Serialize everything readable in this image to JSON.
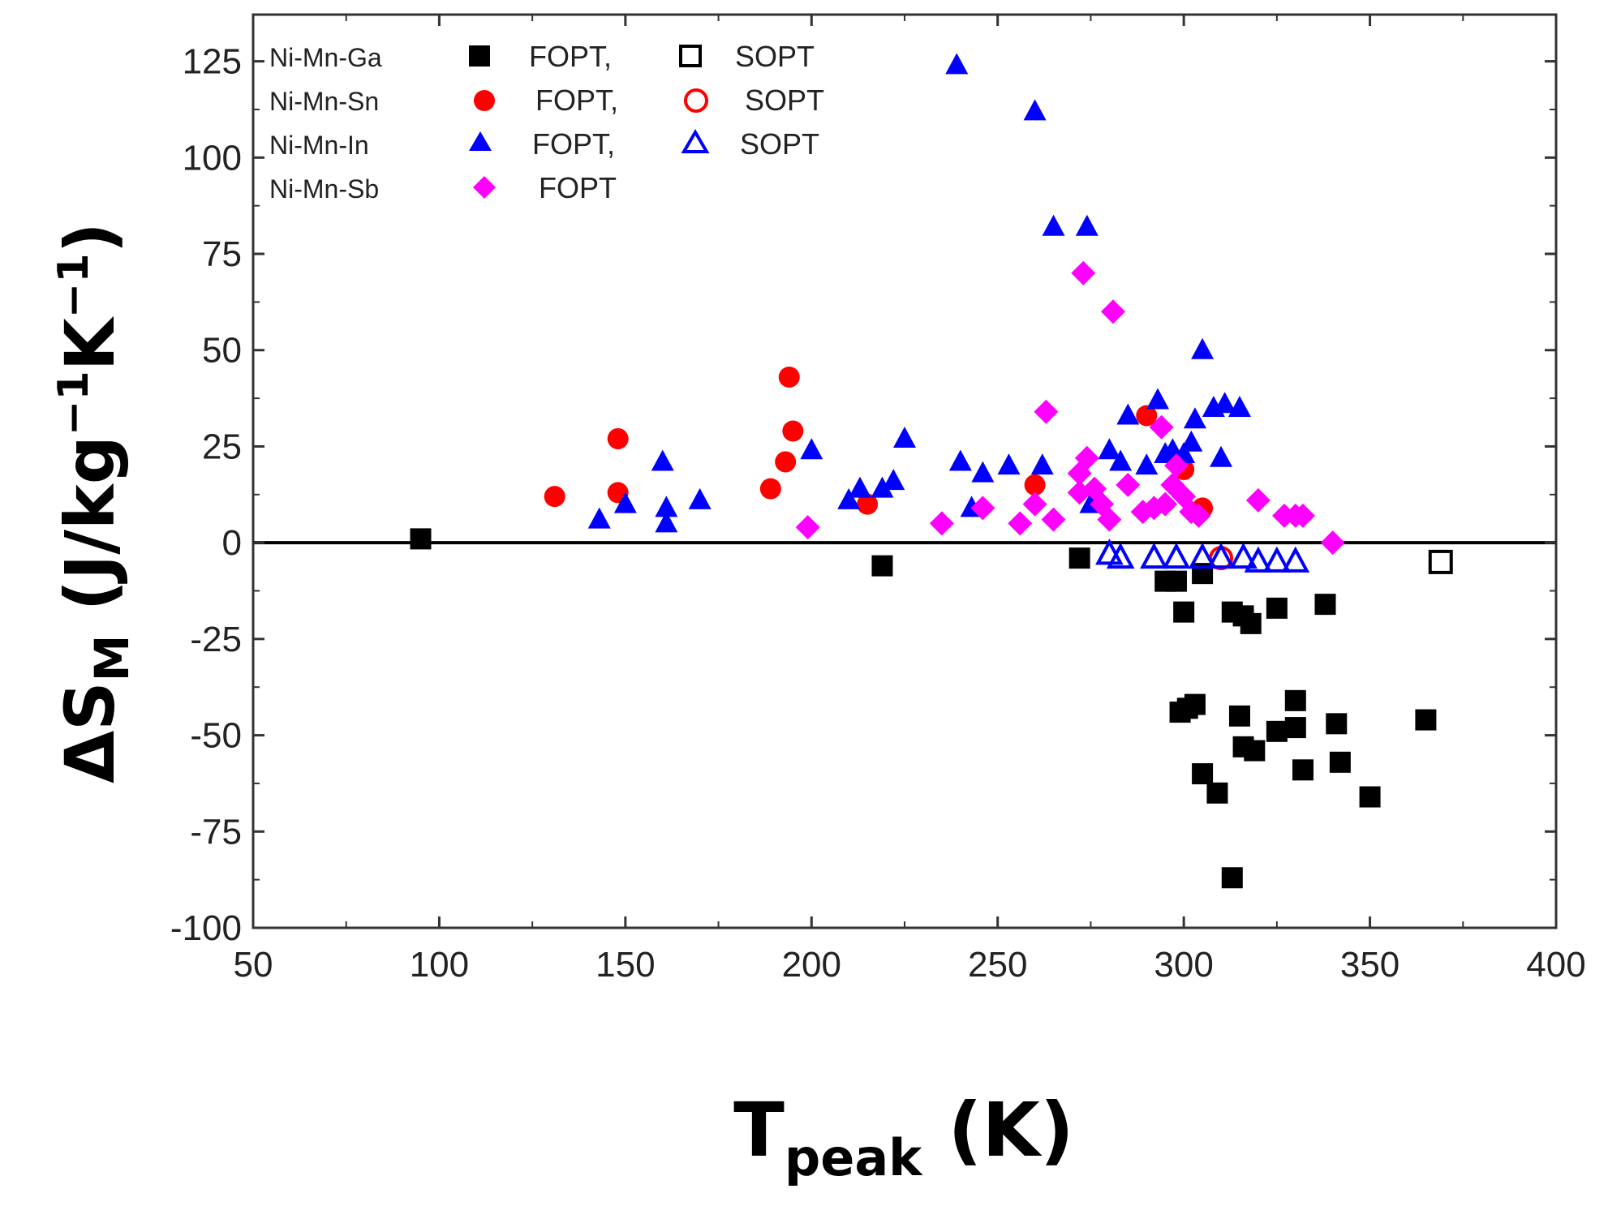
{
  "chart_data": {
    "type": "scatter",
    "title": "",
    "xlabel": {
      "main": "T",
      "subscript": "peak",
      "unit": "(K)"
    },
    "ylabel": {
      "main": "ΔS",
      "subscript": "M",
      "unit": "(J/kg",
      "exp1": "−1",
      "mid": "K",
      "exp2": "−1",
      "close": ")"
    },
    "xlim": [
      50,
      400
    ],
    "ylim": [
      -100,
      137
    ],
    "xticks": [
      50,
      100,
      150,
      200,
      250,
      300,
      350,
      400
    ],
    "yticks": [
      125,
      100,
      75,
      50,
      25,
      0,
      -25,
      -50,
      -75,
      -100
    ],
    "grid": false,
    "zero_line": true,
    "legend_position": "top-left",
    "legend": [
      {
        "alloy": "Ni-Mn-Ga",
        "fopt_label": "FOPT,",
        "sopt_label": "SOPT"
      },
      {
        "alloy": "Ni-Mn-Sn",
        "fopt_label": "FOPT,",
        "sopt_label": "SOPT"
      },
      {
        "alloy": "Ni-Mn-In",
        "fopt_label": "FOPT,",
        "sopt_label": "SOPT"
      },
      {
        "alloy": "Ni-Mn-Sb",
        "fopt_label": "FOPT",
        "sopt_label": ""
      }
    ],
    "series": [
      {
        "name": "Ni-Mn-Ga FOPT",
        "marker": "square",
        "filled": true,
        "color": "#000000",
        "points": [
          [
            95,
            1
          ],
          [
            219,
            -6
          ],
          [
            272,
            -4
          ],
          [
            295,
            -10
          ],
          [
            298,
            -10
          ],
          [
            300,
            -18
          ],
          [
            305,
            -8
          ],
          [
            313,
            -18
          ],
          [
            316,
            -19
          ],
          [
            318,
            -21
          ],
          [
            325,
            -17
          ],
          [
            338,
            -16
          ],
          [
            299,
            -44
          ],
          [
            301,
            -43
          ],
          [
            303,
            -42
          ],
          [
            305,
            -60
          ],
          [
            309,
            -65
          ],
          [
            315,
            -45
          ],
          [
            316,
            -53
          ],
          [
            319,
            -54
          ],
          [
            325,
            -49
          ],
          [
            330,
            -41
          ],
          [
            330,
            -48
          ],
          [
            332,
            -59
          ],
          [
            341,
            -47
          ],
          [
            342,
            -57
          ],
          [
            350,
            -66
          ],
          [
            365,
            -46
          ],
          [
            313,
            -87
          ]
        ]
      },
      {
        "name": "Ni-Mn-Ga SOPT",
        "marker": "square",
        "filled": false,
        "color": "#000000",
        "points": [
          [
            369,
            -5
          ]
        ]
      },
      {
        "name": "Ni-Mn-Sn FOPT",
        "marker": "circle",
        "filled": true,
        "color": "#ff0000",
        "points": [
          [
            131,
            12
          ],
          [
            148,
            27
          ],
          [
            148,
            13
          ],
          [
            189,
            14
          ],
          [
            193,
            21
          ],
          [
            194,
            43
          ],
          [
            195,
            29
          ],
          [
            215,
            10
          ],
          [
            260,
            15
          ],
          [
            290,
            33
          ],
          [
            305,
            9
          ],
          [
            300,
            19
          ]
        ]
      },
      {
        "name": "Ni-Mn-Sn SOPT",
        "marker": "circle",
        "filled": false,
        "color": "#ff0000",
        "points": [
          [
            310,
            -4
          ]
        ]
      },
      {
        "name": "Ni-Mn-In FOPT",
        "marker": "triangle",
        "filled": true,
        "color": "#0000ff",
        "points": [
          [
            143,
            6
          ],
          [
            150,
            10
          ],
          [
            160,
            21
          ],
          [
            161,
            9
          ],
          [
            161,
            5
          ],
          [
            170,
            11
          ],
          [
            200,
            24
          ],
          [
            210,
            11
          ],
          [
            213,
            14
          ],
          [
            219,
            14
          ],
          [
            222,
            16
          ],
          [
            225,
            27
          ],
          [
            239,
            124
          ],
          [
            240,
            21
          ],
          [
            243,
            9
          ],
          [
            246,
            18
          ],
          [
            253,
            20
          ],
          [
            260,
            112
          ],
          [
            262,
            20
          ],
          [
            265,
            82
          ],
          [
            274,
            82
          ],
          [
            275,
            10
          ],
          [
            280,
            24
          ],
          [
            283,
            21
          ],
          [
            285,
            33
          ],
          [
            290,
            20
          ],
          [
            293,
            37
          ],
          [
            295,
            23
          ],
          [
            297,
            24
          ],
          [
            300,
            23
          ],
          [
            302,
            26
          ],
          [
            303,
            32
          ],
          [
            305,
            50
          ],
          [
            308,
            35
          ],
          [
            310,
            22
          ],
          [
            311,
            36
          ],
          [
            315,
            35
          ]
        ]
      },
      {
        "name": "Ni-Mn-In SOPT",
        "marker": "triangle",
        "filled": false,
        "color": "#0000ff",
        "points": [
          [
            280,
            -3
          ],
          [
            283,
            -4
          ],
          [
            292,
            -4
          ],
          [
            298,
            -4
          ],
          [
            305,
            -4
          ],
          [
            310,
            -4
          ],
          [
            316,
            -4
          ],
          [
            320,
            -5
          ],
          [
            325,
            -5
          ],
          [
            330,
            -5
          ]
        ]
      },
      {
        "name": "Ni-Mn-Sb FOPT",
        "marker": "diamond",
        "filled": true,
        "color": "#ff00ff",
        "points": [
          [
            199,
            4
          ],
          [
            235,
            5
          ],
          [
            246,
            9
          ],
          [
            256,
            5
          ],
          [
            260,
            10
          ],
          [
            263,
            34
          ],
          [
            265,
            6
          ],
          [
            272,
            13
          ],
          [
            272,
            18
          ],
          [
            273,
            70
          ],
          [
            274,
            22
          ],
          [
            276,
            14
          ],
          [
            278,
            10
          ],
          [
            280,
            6
          ],
          [
            281,
            60
          ],
          [
            285,
            15
          ],
          [
            289,
            8
          ],
          [
            292,
            9
          ],
          [
            294,
            30
          ],
          [
            295,
            10
          ],
          [
            297,
            15
          ],
          [
            298,
            20
          ],
          [
            300,
            12
          ],
          [
            302,
            8
          ],
          [
            304,
            7
          ],
          [
            320,
            11
          ],
          [
            327,
            7
          ],
          [
            330,
            7
          ],
          [
            332,
            7
          ],
          [
            340,
            0
          ]
        ]
      }
    ]
  }
}
